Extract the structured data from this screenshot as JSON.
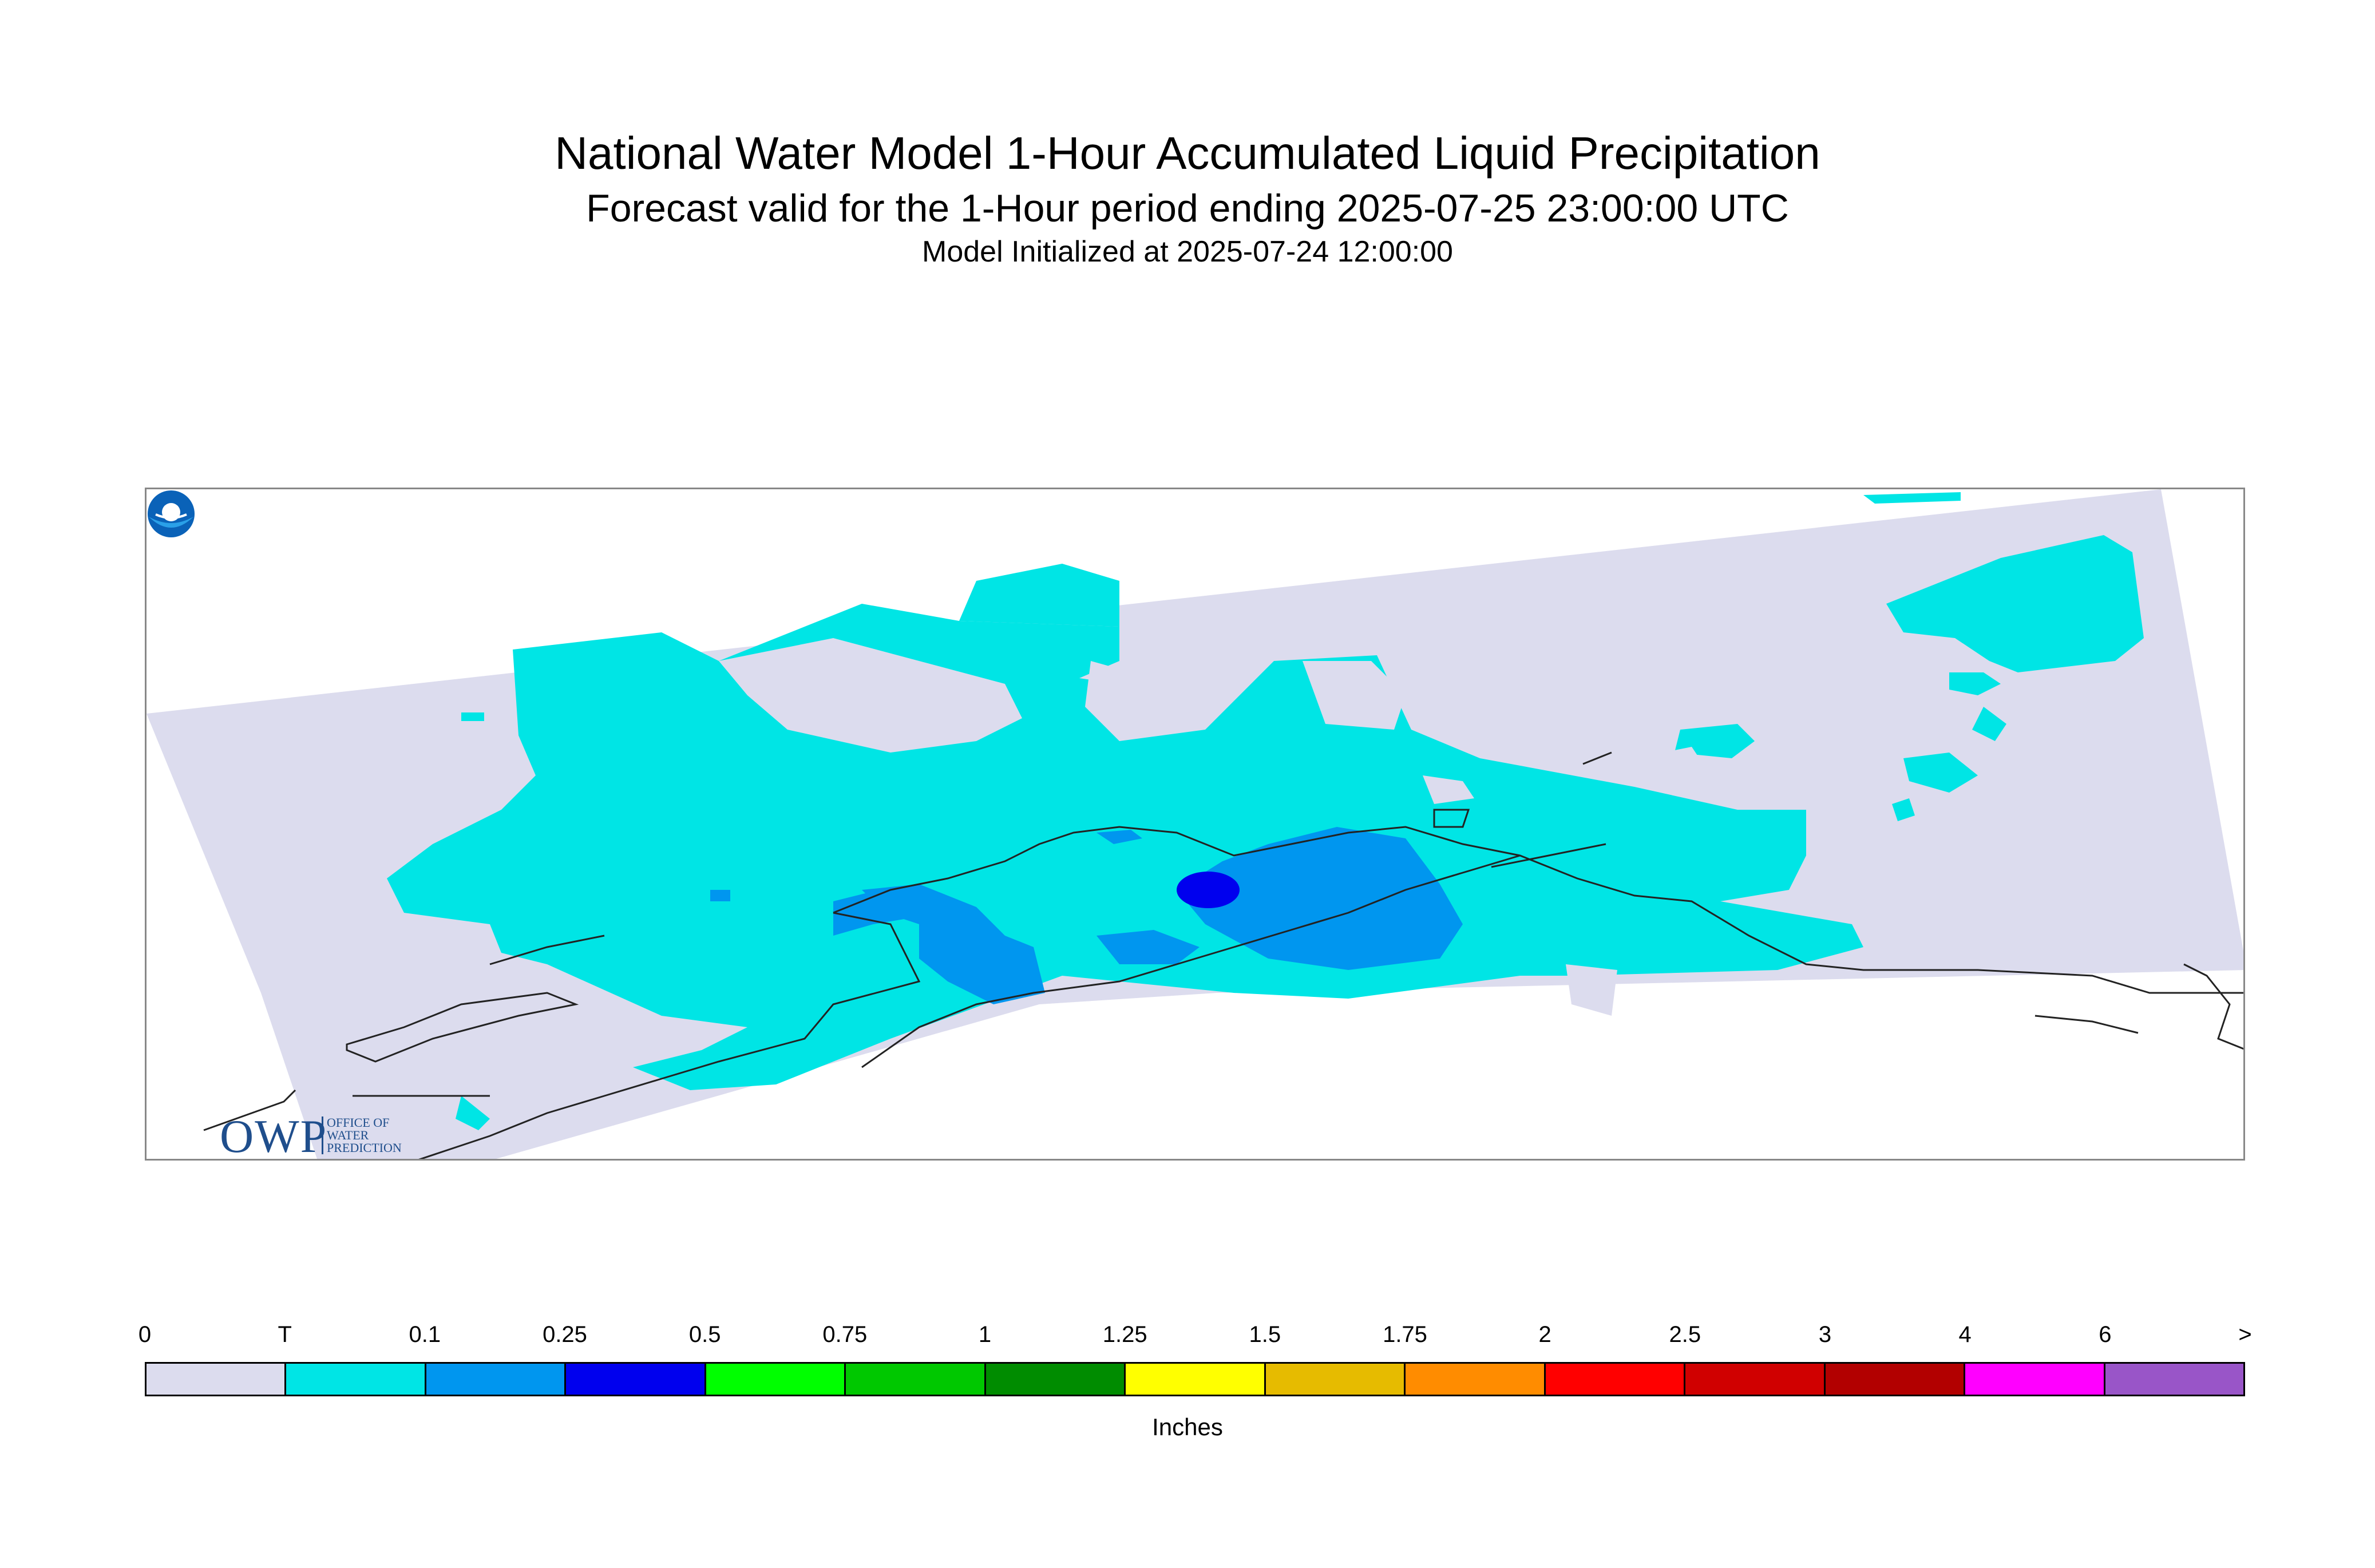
{
  "header": {
    "title": "National Water Model 1-Hour Accumulated Liquid Precipitation",
    "subtitle": "Forecast valid for the 1-Hour period ending 2025-07-25 23:00:00 UTC",
    "initialized": "Model Initialized at 2025-07-24 12:00:00"
  },
  "logos": {
    "owp_text": "OWP",
    "owp_small": "OFFICE OF WATER PREDICTION",
    "noaa": "noaa-logo-icon"
  },
  "legend": {
    "units": "Inches",
    "ticks": [
      "0",
      "T",
      "0.1",
      "0.25",
      "0.5",
      "0.75",
      "1",
      "1.25",
      "1.5",
      "1.75",
      "2",
      "2.5",
      "3",
      "4",
      "6",
      ">"
    ],
    "colors": [
      "#dcdcee",
      "#00e5e5",
      "#0096ef",
      "#0000ee",
      "#00ff00",
      "#00c800",
      "#008c00",
      "#ffff00",
      "#e6bb00",
      "#ff8c00",
      "#ff0000",
      "#d00000",
      "#b20000",
      "#ff00ff",
      "#9955c8"
    ]
  }
}
